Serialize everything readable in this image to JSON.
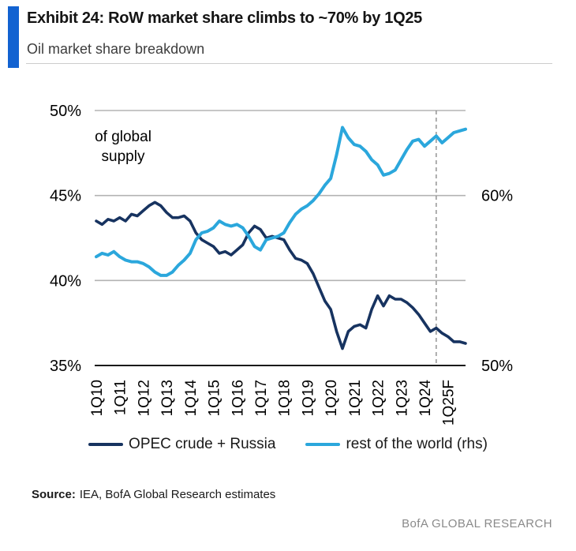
{
  "header": {
    "exhibit_title": "Exhibit 24: RoW market share climbs to ~70% by 1Q25",
    "subtitle": "Oil market share breakdown",
    "accent_color": "#1262D1"
  },
  "chart_data": {
    "type": "line",
    "annotation_lines": [
      "of global",
      "supply"
    ],
    "x_tick_labels": [
      "1Q10",
      "1Q11",
      "1Q12",
      "1Q13",
      "1Q14",
      "1Q15",
      "1Q16",
      "1Q17",
      "1Q18",
      "1Q19",
      "1Q20",
      "1Q21",
      "1Q22",
      "1Q23",
      "1Q24",
      "1Q25F"
    ],
    "x_start": "1Q10",
    "x_end": "4Q25",
    "quarters_per_tick": 4,
    "left_axis": {
      "min": 35,
      "max": 50,
      "tick_labels": [
        {
          "value": 50,
          "label": "50%"
        },
        {
          "value": 45,
          "label": "45%"
        },
        {
          "value": 40,
          "label": "40%"
        },
        {
          "value": 35,
          "label": "35%"
        }
      ],
      "gridline_values": [
        50,
        45,
        40
      ]
    },
    "right_axis": {
      "min": 50,
      "max": 65,
      "tick_labels": [
        {
          "value": 60,
          "label": "60%"
        },
        {
          "value": 50,
          "label": "50%"
        }
      ]
    },
    "forecast_divider": {
      "quarter_index": 58,
      "style": "dashed",
      "color": "#8c8c8c"
    },
    "grid_color": "#b3b3b3",
    "axis_color": "#1a1a1a",
    "series": [
      {
        "name": "OPEC crude + Russia",
        "axis": "left",
        "color": "#173360",
        "values": [
          43.5,
          43.3,
          43.6,
          43.5,
          43.7,
          43.5,
          43.9,
          43.8,
          44.1,
          44.4,
          44.6,
          44.4,
          44.0,
          43.7,
          43.7,
          43.8,
          43.5,
          42.8,
          42.4,
          42.2,
          42.0,
          41.6,
          41.7,
          41.5,
          41.8,
          42.1,
          42.8,
          43.2,
          43.0,
          42.5,
          42.6,
          42.5,
          42.4,
          41.8,
          41.3,
          41.2,
          41.0,
          40.4,
          39.6,
          38.8,
          38.3,
          37.0,
          36.0,
          37.0,
          37.3,
          37.4,
          37.2,
          38.3,
          39.1,
          38.5,
          39.1,
          38.9,
          38.9,
          38.7,
          38.4,
          38.0,
          37.5,
          37.0,
          37.2,
          36.9,
          36.7,
          36.4,
          36.4,
          36.3
        ]
      },
      {
        "name": "rest of the world (rhs)",
        "axis": "right",
        "color": "#2BA7DC",
        "values": [
          56.4,
          56.6,
          56.5,
          56.7,
          56.4,
          56.2,
          56.1,
          56.1,
          56.0,
          55.8,
          55.5,
          55.3,
          55.3,
          55.5,
          55.9,
          56.2,
          56.6,
          57.4,
          57.8,
          57.9,
          58.1,
          58.5,
          58.3,
          58.2,
          58.3,
          58.1,
          57.6,
          57.0,
          56.8,
          57.4,
          57.5,
          57.6,
          57.8,
          58.4,
          58.9,
          59.2,
          59.4,
          59.7,
          60.1,
          60.6,
          61.0,
          62.4,
          64.0,
          63.4,
          63.0,
          62.9,
          62.6,
          62.1,
          61.8,
          61.2,
          61.3,
          61.5,
          62.1,
          62.7,
          63.2,
          63.3,
          62.9,
          63.2,
          63.5,
          63.1,
          63.4,
          63.7,
          63.8,
          63.9
        ]
      }
    ]
  },
  "source": {
    "label": "Source:",
    "text": "IEA, BofA Global Research estimates"
  },
  "footer": {
    "brand": "BofA GLOBAL RESEARCH"
  }
}
